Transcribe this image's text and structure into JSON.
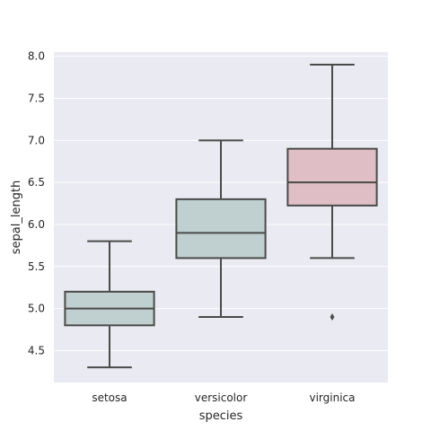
{
  "chart_data": {
    "type": "box",
    "xlabel": "species",
    "ylabel": "sepal_length",
    "ylim": [
      4.12,
      8.05
    ],
    "yticks": [
      "4.5",
      "5.0",
      "5.5",
      "6.0",
      "6.5",
      "7.0",
      "7.5",
      "8.0"
    ],
    "grid": true,
    "colors": {
      "background": "#eaeaf2",
      "grid": "#ffffff",
      "box_stroke": "#4a4a4a",
      "flier": "#4a4a4a"
    },
    "boxes": [
      {
        "category": "setosa",
        "whisker_low": 4.3,
        "q1": 4.8,
        "median": 5.0,
        "q3": 5.2,
        "whisker_high": 5.8,
        "outliers": [],
        "color": "#c0cfcf"
      },
      {
        "category": "versicolor",
        "whisker_low": 4.9,
        "q1": 5.6,
        "median": 5.9,
        "q3": 6.3,
        "whisker_high": 7.0,
        "outliers": [],
        "color": "#c0cfcf"
      },
      {
        "category": "virginica",
        "whisker_low": 5.6,
        "q1": 6.225,
        "median": 6.5,
        "q3": 6.9,
        "whisker_high": 7.9,
        "outliers": [
          4.9
        ],
        "color": "#dfbfc5"
      }
    ]
  }
}
